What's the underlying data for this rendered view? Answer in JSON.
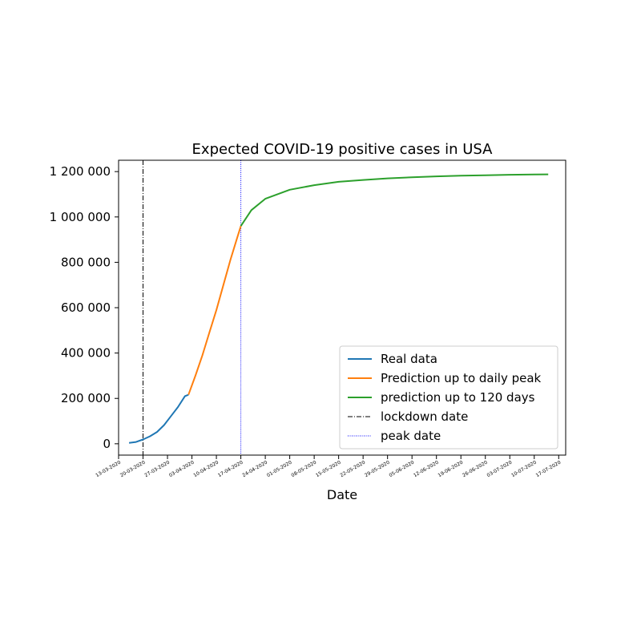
{
  "chart_data": {
    "type": "line",
    "title": "Expected COVID-19 positive cases in USA",
    "xlabel": "Date",
    "ylabel": "",
    "ylim": [
      -50000,
      1250000
    ],
    "xlim": [
      "2020-03-13",
      "2020-07-19"
    ],
    "grid": false,
    "legend_position": "lower-right",
    "yticks": [
      0,
      200000,
      400000,
      600000,
      800000,
      1000000,
      1200000
    ],
    "ytick_labels": [
      "0",
      "200 000",
      "400 000",
      "600 000",
      "800 000",
      "1 000 000",
      "1 200 000"
    ],
    "xticks": [
      "2020-03-13",
      "2020-03-20",
      "2020-03-27",
      "2020-04-03",
      "2020-04-10",
      "2020-04-17",
      "2020-04-24",
      "2020-05-01",
      "2020-05-08",
      "2020-05-15",
      "2020-05-22",
      "2020-05-29",
      "2020-06-05",
      "2020-06-12",
      "2020-06-19",
      "2020-06-26",
      "2020-07-03",
      "2020-07-10",
      "2020-07-17"
    ],
    "xtick_labels": [
      "13-03-2020",
      "20-03-2020",
      "27-03-2020",
      "03-04-2020",
      "10-04-2020",
      "17-04-2020",
      "24-04-2020",
      "01-05-2020",
      "08-05-2020",
      "15-05-2020",
      "22-05-2020",
      "29-05-2020",
      "05-06-2020",
      "12-06-2020",
      "19-06-2020",
      "26-06-2020",
      "03-07-2020",
      "10-07-2020",
      "17-07-2020"
    ],
    "series": [
      {
        "name": "Real data",
        "color": "#1f77b4",
        "style": "solid",
        "x": [
          "2020-03-16",
          "2020-03-18",
          "2020-03-20",
          "2020-03-22",
          "2020-03-24",
          "2020-03-26",
          "2020-03-28",
          "2020-03-30",
          "2020-04-01",
          "2020-04-02"
        ],
        "y": [
          4000,
          8000,
          19000,
          33000,
          52000,
          82000,
          122000,
          162000,
          210000,
          216000
        ]
      },
      {
        "name": "Prediction up to daily peak",
        "color": "#ff7f0e",
        "style": "solid",
        "x": [
          "2020-04-02",
          "2020-04-04",
          "2020-04-06",
          "2020-04-08",
          "2020-04-10",
          "2020-04-12",
          "2020-04-14",
          "2020-04-16",
          "2020-04-17"
        ],
        "y": [
          216000,
          300000,
          390000,
          490000,
          590000,
          700000,
          810000,
          910000,
          960000
        ]
      },
      {
        "name": "prediction up to 120 days",
        "color": "#2ca02c",
        "style": "solid",
        "x": [
          "2020-04-17",
          "2020-04-20",
          "2020-04-24",
          "2020-05-01",
          "2020-05-08",
          "2020-05-15",
          "2020-05-22",
          "2020-05-29",
          "2020-06-05",
          "2020-06-12",
          "2020-06-19",
          "2020-06-26",
          "2020-07-03",
          "2020-07-10",
          "2020-07-14"
        ],
        "y": [
          960000,
          1030000,
          1080000,
          1120000,
          1140000,
          1155000,
          1163000,
          1170000,
          1175000,
          1179000,
          1182000,
          1184000,
          1186000,
          1187000,
          1188000
        ]
      }
    ],
    "vlines": [
      {
        "name": "lockdown date",
        "x": "2020-03-20",
        "color": "#000000",
        "style": "dashdot"
      },
      {
        "name": "peak date",
        "x": "2020-04-17",
        "color": "#0000ff",
        "style": "dotted"
      }
    ]
  }
}
